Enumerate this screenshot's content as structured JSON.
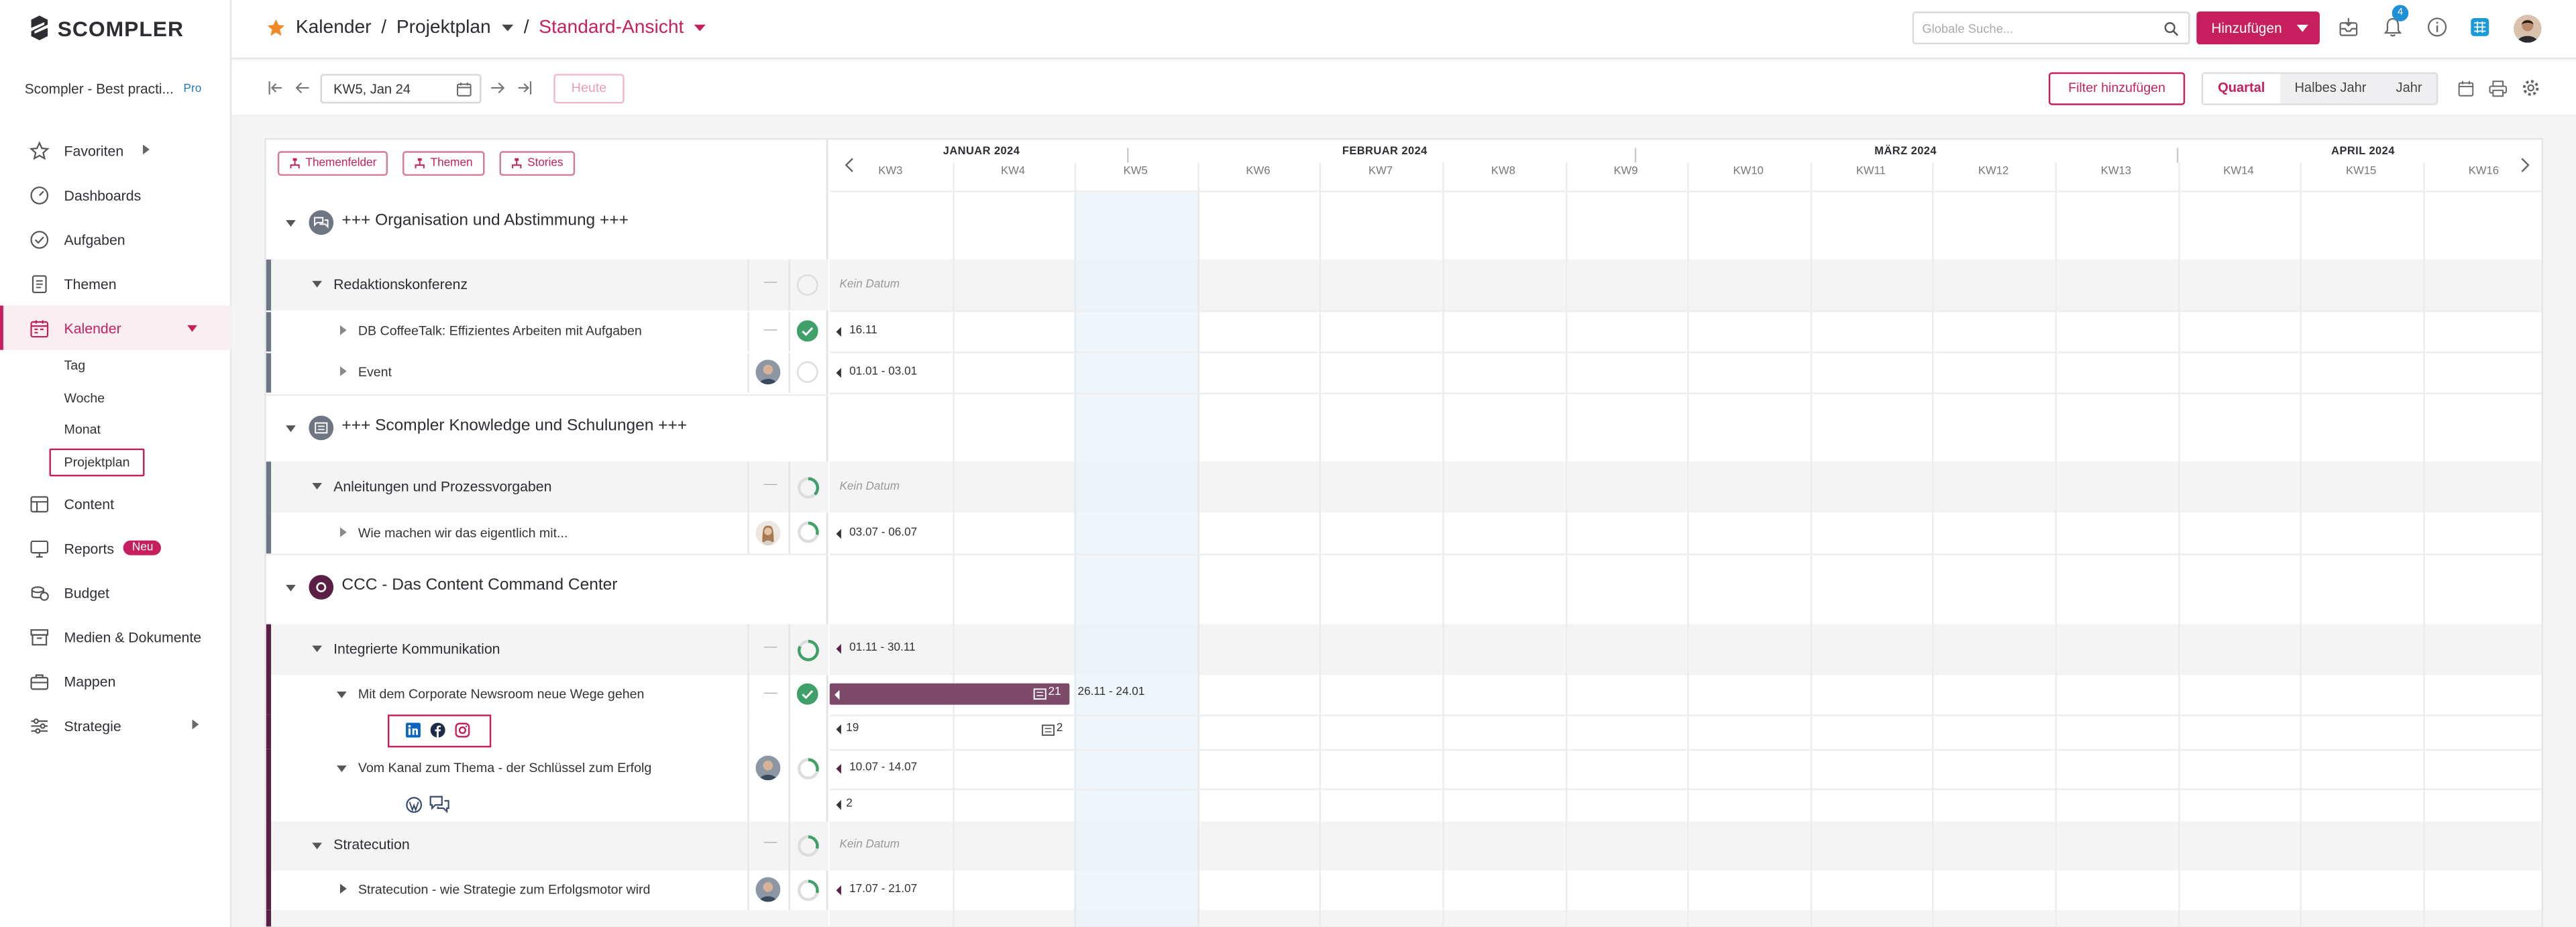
{
  "app": {
    "brand": "SCOMPLER",
    "workspace": "Scompler - Best practi...",
    "workspace_plan": "Pro"
  },
  "sidebar": {
    "items": [
      {
        "label": "Favoriten",
        "icon": "star-icon"
      },
      {
        "label": "Dashboards",
        "icon": "gauge-icon"
      },
      {
        "label": "Aufgaben",
        "icon": "check-circle-icon"
      },
      {
        "label": "Themen",
        "icon": "document-icon"
      },
      {
        "label": "Kalender",
        "icon": "calendar-icon"
      },
      {
        "label": "Content",
        "icon": "table-icon"
      },
      {
        "label": "Reports",
        "icon": "monitor-icon",
        "badge": "Neu"
      },
      {
        "label": "Budget",
        "icon": "coins-icon"
      },
      {
        "label": "Medien & Dokumente",
        "icon": "archive-icon"
      },
      {
        "label": "Mappen",
        "icon": "briefcase-icon"
      },
      {
        "label": "Strategie",
        "icon": "sliders-icon"
      }
    ],
    "kalender_sub": [
      "Tag",
      "Woche",
      "Monat",
      "Projektplan"
    ]
  },
  "header": {
    "breadcrumb": [
      "Kalender",
      "Projektplan",
      "Standard-Ansicht"
    ],
    "search_placeholder": "Globale Suche...",
    "add_label": "Hinzufügen",
    "notification_count": "4"
  },
  "toolbar": {
    "week_value": "KW5, Jan 24",
    "today_label": "Heute",
    "filter_label": "Filter hinzufügen",
    "ranges": [
      "Quartal",
      "Halbes Jahr",
      "Jahr"
    ],
    "active_range": "Quartal"
  },
  "filters": [
    "Themenfelder",
    "Themen",
    "Stories"
  ],
  "timeline": {
    "months": [
      "JANUAR 2024",
      "FEBRUAR 2024",
      "MÄRZ 2024",
      "APRIL 2024"
    ],
    "weeks": [
      "KW3",
      "KW4",
      "KW5",
      "KW6",
      "KW7",
      "KW8",
      "KW9",
      "KW10",
      "KW11",
      "KW12",
      "KW13",
      "KW14",
      "KW15",
      "KW16"
    ]
  },
  "rows": {
    "g1": {
      "title": "+++ Organisation und Abstimmung +++"
    },
    "g1_t1": {
      "title": "Redaktionskonferenz",
      "dash": "—",
      "date": "Kein Datum"
    },
    "g1_t1_a": {
      "title": "DB CoffeeTalk: Effizientes Arbeiten mit Aufgaben",
      "dash": "—",
      "date": "16.11"
    },
    "g1_t1_b": {
      "title": "Event",
      "date": "01.01 - 03.01"
    },
    "g2": {
      "title": "+++ Scompler Knowledge und Schulungen +++"
    },
    "g2_t1": {
      "title": "Anleitungen und Prozessvorgaben",
      "dash": "—",
      "date": "Kein Datum"
    },
    "g2_t1_a": {
      "title": "Wie machen wir das eigentlich mit...",
      "date": "03.07 - 06.07"
    },
    "g3": {
      "title": "CCC - Das Content Command Center"
    },
    "g3_t1": {
      "title": "Integrierte Kommunikation",
      "dash": "—",
      "date": "01.11 - 30.11"
    },
    "g3_t1_a": {
      "title": "Mit dem Corporate Newsroom neue Wege gehen",
      "dash": "—",
      "bar_count": "21",
      "date": "26.11 - 24.01"
    },
    "g3_t1_a_ch": {
      "count_left": "19",
      "count_right": "2"
    },
    "g3_t1_b": {
      "title": "Vom Kanal zum Thema - der Schlüssel zum Erfolg",
      "date": "10.07 - 14.07"
    },
    "g3_t1_b_ch": {
      "count": "2"
    },
    "g3_t2": {
      "title": "Stratecution",
      "dash": "—",
      "date": "Kein Datum"
    },
    "g3_t2_a": {
      "title": "Stratecution - wie Strategie zum Erfolgsmotor wird",
      "date": "17.07 - 21.07"
    }
  },
  "colors": {
    "accent": "#c71f5e",
    "group_stripe_gray": "#6e7684",
    "group_stripe_purple": "#5b1f46",
    "done_green": "#3fa06a"
  }
}
